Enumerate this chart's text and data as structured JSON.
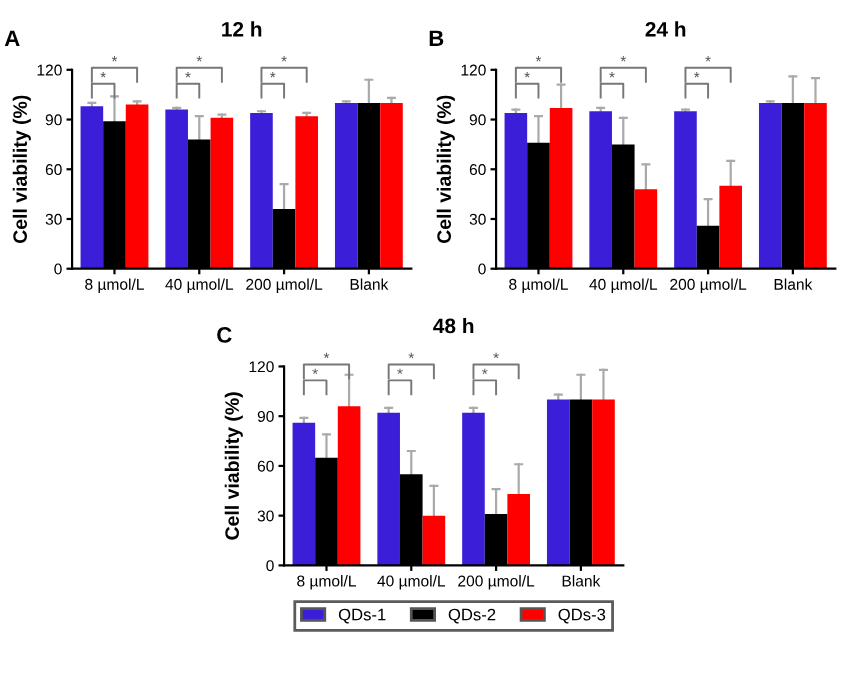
{
  "chart_data": [
    {
      "type": "bar",
      "title": "12 h",
      "ylabel": "Cell viability (%)",
      "categories": [
        "8 µmol/L",
        "40 µmol/L",
        "200 µmol/L",
        "Blank"
      ],
      "ylim": [
        0,
        120
      ],
      "yticks": [
        0,
        30,
        60,
        90,
        120
      ],
      "grid": false,
      "legend": false,
      "annotations": [
        "A",
        "*",
        "*",
        "*",
        "*",
        "*",
        "*"
      ],
      "series": [
        {
          "color": "#3b1fd8",
          "values": [
            98,
            96,
            94,
            100
          ],
          "errors": [
            [
              98,
              100
            ],
            [
              96,
              97
            ],
            [
              94,
              95
            ],
            [
              100,
              101
            ]
          ]
        },
        {
          "color": "#000000",
          "values": [
            89,
            78,
            36,
            100
          ],
          "errors": [
            [
              89,
              104
            ],
            [
              78,
              92
            ],
            [
              36,
              51
            ],
            [
              100,
              114
            ]
          ]
        },
        {
          "color": "#ff0000",
          "values": [
            99,
            91,
            92,
            100
          ],
          "errors": [
            [
              99,
              101
            ],
            [
              91,
              93
            ],
            [
              92,
              94
            ],
            [
              100,
              103
            ]
          ]
        }
      ]
    },
    {
      "type": "bar",
      "title": "24 h",
      "ylabel": "Cell viability (%)",
      "categories": [
        "8 µmol/L",
        "40 µmol/L",
        "200 µmol/L",
        "Blank"
      ],
      "ylim": [
        0,
        120
      ],
      "yticks": [
        0,
        30,
        60,
        90,
        120
      ],
      "grid": false,
      "legend": false,
      "annotations": [
        "B",
        "*",
        "*",
        "*",
        "*",
        "*",
        "*"
      ],
      "series": [
        {
          "color": "#3b1fd8",
          "values": [
            94,
            95,
            95,
            100
          ],
          "errors": [
            [
              94,
              96
            ],
            [
              95,
              97
            ],
            [
              95,
              96
            ],
            [
              100,
              101
            ]
          ]
        },
        {
          "color": "#000000",
          "values": [
            76,
            75,
            26,
            100
          ],
          "errors": [
            [
              76,
              92
            ],
            [
              75,
              91
            ],
            [
              26,
              42
            ],
            [
              100,
              116
            ]
          ]
        },
        {
          "color": "#ff0000",
          "values": [
            97,
            48,
            50,
            100
          ],
          "errors": [
            [
              97,
              111
            ],
            [
              48,
              63
            ],
            [
              50,
              65
            ],
            [
              100,
              115
            ]
          ]
        }
      ]
    },
    {
      "type": "bar",
      "title": "48 h",
      "ylabel": "Cell viability (%)",
      "categories": [
        "8 µmol/L",
        "40 µmol/L",
        "200 µmol/L",
        "Blank"
      ],
      "ylim": [
        0,
        120
      ],
      "yticks": [
        0,
        30,
        60,
        90,
        120
      ],
      "grid": false,
      "legend": "bottom",
      "annotations": [
        "C",
        "*",
        "*",
        "*",
        "*",
        "*",
        "*"
      ],
      "series": [
        {
          "name": "QDs-1",
          "color": "#3b1fd8",
          "values": [
            86,
            92,
            92,
            100
          ],
          "errors": [
            [
              86,
              89
            ],
            [
              92,
              95
            ],
            [
              92,
              95
            ],
            [
              100,
              103
            ]
          ]
        },
        {
          "name": "QDs-2",
          "color": "#000000",
          "values": [
            65,
            55,
            31,
            100
          ],
          "errors": [
            [
              65,
              79
            ],
            [
              55,
              69
            ],
            [
              31,
              46
            ],
            [
              100,
              115
            ]
          ]
        },
        {
          "name": "QDs-3",
          "color": "#ff0000",
          "values": [
            96,
            30,
            43,
            100
          ],
          "errors": [
            [
              96,
              115
            ],
            [
              30,
              48
            ],
            [
              43,
              61
            ],
            [
              100,
              118
            ]
          ]
        }
      ]
    }
  ]
}
